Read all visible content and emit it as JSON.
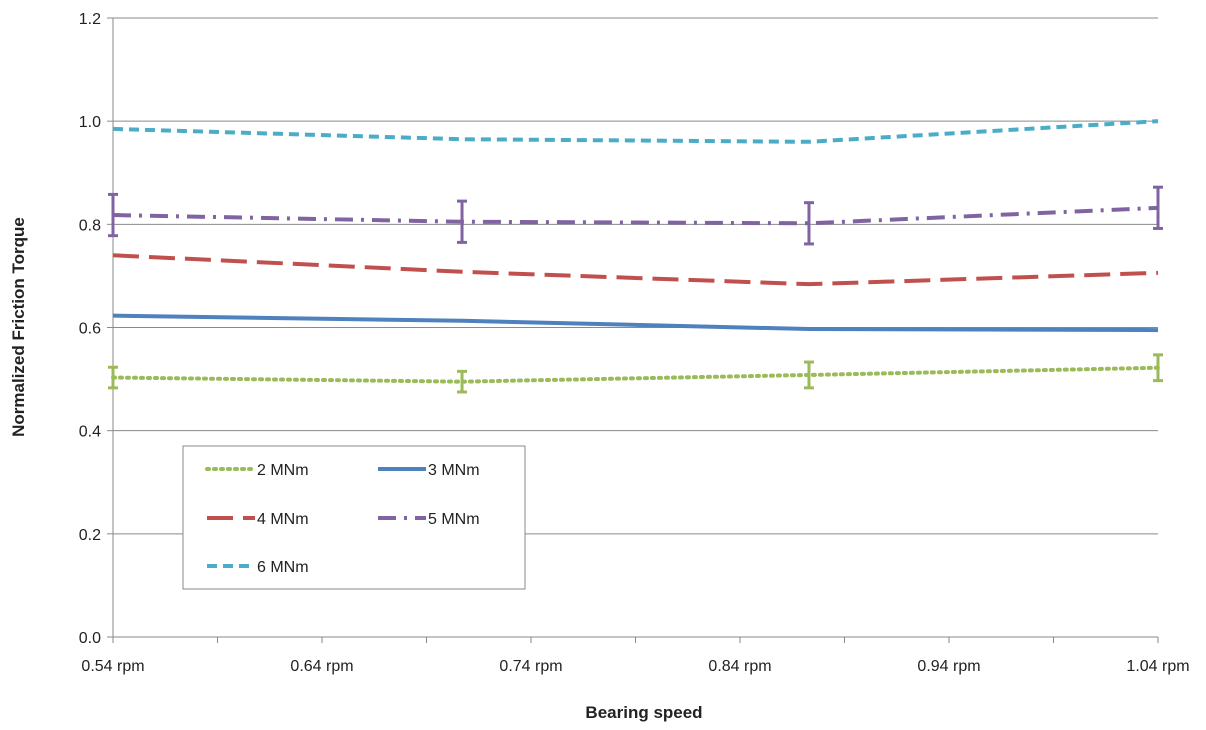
{
  "chart_data": {
    "type": "line",
    "xlabel": "Bearing speed",
    "ylabel": "Normalized Friction Torque",
    "xlim": [
      0.54,
      1.04
    ],
    "ylim": [
      0.0,
      1.2
    ],
    "x_ticks": [
      {
        "value": 0.54,
        "label": "0.54 rpm"
      },
      {
        "value": 0.64,
        "label": "0.64 rpm"
      },
      {
        "value": 0.74,
        "label": "0.74 rpm"
      },
      {
        "value": 0.84,
        "label": "0.84 rpm"
      },
      {
        "value": 0.94,
        "label": "0.94 rpm"
      },
      {
        "value": 1.04,
        "label": "1.04 rpm"
      }
    ],
    "y_ticks": [
      {
        "value": 0.0,
        "label": "0.0"
      },
      {
        "value": 0.2,
        "label": "0.2"
      },
      {
        "value": 0.4,
        "label": "0.4"
      },
      {
        "value": 0.6,
        "label": "0.6"
      },
      {
        "value": 0.8,
        "label": "0.8"
      },
      {
        "value": 1.0,
        "label": "1.0"
      },
      {
        "value": 1.2,
        "label": "1.2"
      }
    ],
    "grid": "horizontal",
    "legend_position": "lower-left inside plot",
    "x": [
      0.54,
      0.707,
      0.873,
      1.04
    ],
    "series": [
      {
        "name": "2 MNm",
        "values": [
          0.503,
          0.495,
          0.508,
          0.522
        ],
        "error": [
          0.02,
          0.02,
          0.025,
          0.025
        ],
        "color": "#9BBB59",
        "dash": "dotted"
      },
      {
        "name": "3 MNm",
        "values": [
          0.623,
          0.613,
          0.597,
          0.595
        ],
        "color": "#4F81BD",
        "dash": "solid"
      },
      {
        "name": "4 MNm",
        "values": [
          0.74,
          0.708,
          0.684,
          0.706
        ],
        "color": "#C0504D",
        "dash": "long-dash"
      },
      {
        "name": "5 MNm",
        "values": [
          0.818,
          0.805,
          0.802,
          0.832
        ],
        "error": [
          0.04,
          0.04,
          0.04,
          0.04
        ],
        "color": "#8064A2",
        "dash": "dash-dot"
      },
      {
        "name": "6 MNm",
        "values": [
          0.985,
          0.965,
          0.96,
          1.0
        ],
        "color": "#4BACC6",
        "dash": "short-dash"
      }
    ]
  }
}
